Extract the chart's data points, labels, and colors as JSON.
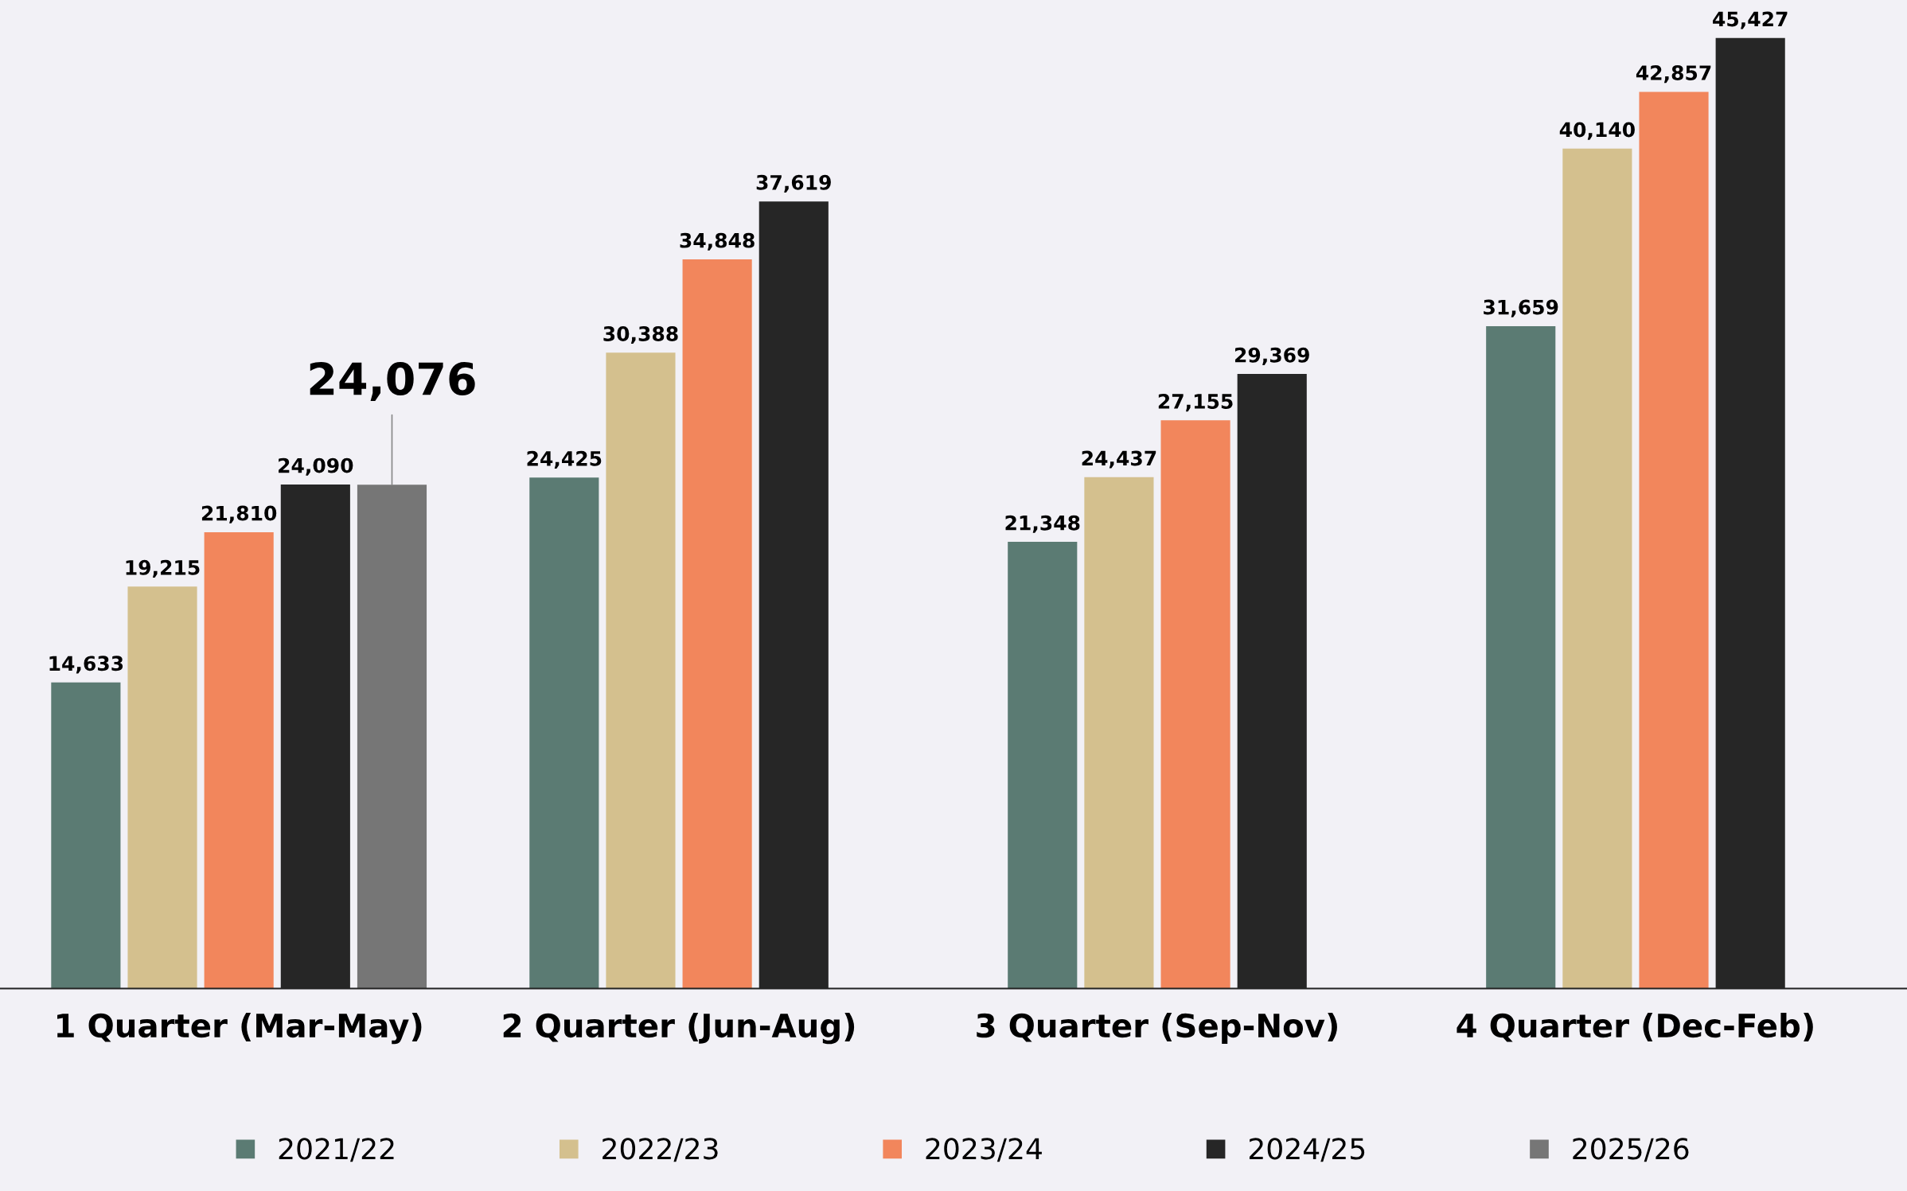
{
  "chart_data": {
    "type": "bar",
    "categories": [
      "1 Quarter (Mar-May)",
      "2 Quarter (Jun-Aug)",
      "3 Quarter (Sep-Nov)",
      "4 Quarter (Dec-Feb)"
    ],
    "series": [
      {
        "name": "2021/22",
        "color": "#5b7b73",
        "values": [
          14633,
          24425,
          21348,
          31659
        ],
        "value_labels": [
          "14,633",
          "24,425",
          "21,348",
          "31,659"
        ]
      },
      {
        "name": "2022/23",
        "color": "#d4c08e",
        "values": [
          19215,
          30388,
          24437,
          40140
        ],
        "value_labels": [
          "19,215",
          "30,388",
          "24,437",
          "40,140"
        ]
      },
      {
        "name": "2023/24",
        "color": "#f2865c",
        "values": [
          21810,
          34848,
          27155,
          42857
        ],
        "value_labels": [
          "21,810",
          "34,848",
          "27,155",
          "42,857"
        ]
      },
      {
        "name": "2024/25",
        "color": "#262626",
        "values": [
          24090,
          37619,
          29369,
          45427
        ],
        "value_labels": [
          "24,090",
          "37,619",
          "29,369",
          "45,427"
        ]
      },
      {
        "name": "2025/26",
        "color": "#767676",
        "values": [
          24076,
          null,
          null,
          null
        ],
        "value_labels": [
          "24,076",
          null,
          null,
          null
        ]
      }
    ],
    "legend": "bottom",
    "grid": false
  }
}
